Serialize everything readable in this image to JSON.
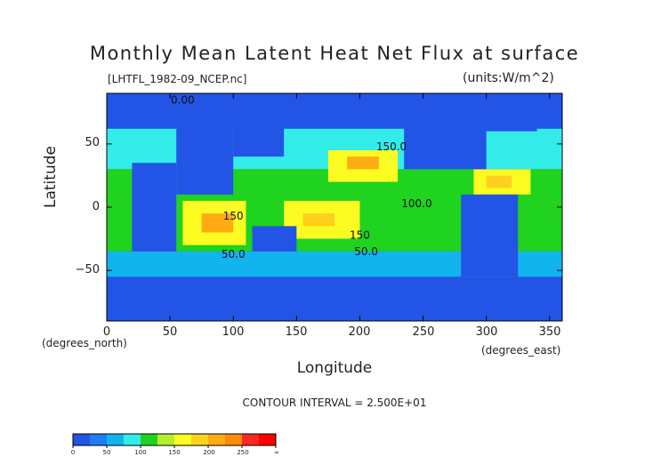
{
  "chart_data": {
    "type": "heatmap",
    "title": "Monthly Mean Latent Heat Net Flux at surface",
    "subtitle": "[LHTFL_1982-09_NCEP.nc]",
    "units": "(units:W/m^2)",
    "xlabel": "Longitude",
    "ylabel": "Latitude",
    "x_unit_note": "(degrees_east)",
    "y_unit_note": "(degrees_north)",
    "xlim": [
      0,
      360
    ],
    "ylim": [
      -90,
      90
    ],
    "x_ticks": [
      "0",
      "50",
      "100",
      "150",
      "200",
      "250",
      "300",
      "350"
    ],
    "x_tick_values": [
      0,
      50,
      100,
      150,
      200,
      250,
      300,
      350
    ],
    "y_ticks": [
      "50",
      "0",
      "−50"
    ],
    "y_tick_values": [
      50,
      0,
      -50
    ],
    "contour_interval_text": "CONTOUR INTERVAL = 2.500E+01",
    "contour_labels": [
      {
        "text": "0.00",
        "lon": 60,
        "lat": 82
      },
      {
        "text": "150.0",
        "lon": 225,
        "lat": 45
      },
      {
        "text": "100.0",
        "lon": 245,
        "lat": 0
      },
      {
        "text": "150",
        "lon": 100,
        "lat": -10
      },
      {
        "text": "150",
        "lon": 200,
        "lat": -25
      },
      {
        "text": "50.0",
        "lon": 100,
        "lat": -40
      },
      {
        "text": "50.0",
        "lon": 205,
        "lat": -38
      }
    ],
    "colorbar": {
      "levels": [
        0,
        25,
        50,
        75,
        100,
        125,
        150,
        175,
        200,
        225,
        250,
        275
      ],
      "colors": [
        "#2255e6",
        "#1f7cf2",
        "#12b4ee",
        "#33ecea",
        "#1fd31f",
        "#b3ef2a",
        "#fcfc22",
        "#ffd11c",
        "#ffab14",
        "#ff8a0c",
        "#ff2626",
        "#ff0000"
      ],
      "tick_labels": [
        "0",
        "50",
        "100",
        "150",
        "200",
        "250",
        "∞"
      ],
      "tick_values": [
        0,
        50,
        100,
        150,
        200,
        250,
        300
      ]
    },
    "regions": [
      {
        "lon": [
          0,
          360
        ],
        "lat": [
          -90,
          90
        ],
        "value": 20
      },
      {
        "lon": [
          0,
          360
        ],
        "lat": [
          30,
          62
        ],
        "value": 75
      },
      {
        "lon": [
          0,
          360
        ],
        "lat": [
          -35,
          30
        ],
        "value": 120
      },
      {
        "lon": [
          0,
          360
        ],
        "lat": [
          -55,
          -35
        ],
        "value": 70
      },
      {
        "lon": [
          60,
          110
        ],
        "lat": [
          -30,
          5
        ],
        "value": 165
      },
      {
        "lon": [
          75,
          100
        ],
        "lat": [
          -20,
          -5
        ],
        "value": 210
      },
      {
        "lon": [
          140,
          200
        ],
        "lat": [
          -25,
          5
        ],
        "value": 160
      },
      {
        "lon": [
          155,
          180
        ],
        "lat": [
          -15,
          -5
        ],
        "value": 195
      },
      {
        "lon": [
          175,
          230
        ],
        "lat": [
          20,
          45
        ],
        "value": 165
      },
      {
        "lon": [
          190,
          215
        ],
        "lat": [
          30,
          40
        ],
        "value": 200
      },
      {
        "lon": [
          290,
          335
        ],
        "lat": [
          10,
          30
        ],
        "value": 160
      },
      {
        "lon": [
          300,
          320
        ],
        "lat": [
          15,
          25
        ],
        "value": 180
      },
      {
        "lon": [
          20,
          55
        ],
        "lat": [
          -35,
          35
        ],
        "value": 20
      },
      {
        "lon": [
          55,
          100
        ],
        "lat": [
          10,
          70
        ],
        "value": 20
      },
      {
        "lon": [
          100,
          140
        ],
        "lat": [
          40,
          75
        ],
        "value": 20
      },
      {
        "lon": [
          115,
          150
        ],
        "lat": [
          -35,
          -15
        ],
        "value": 20
      },
      {
        "lon": [
          235,
          300
        ],
        "lat": [
          30,
          75
        ],
        "value": 20
      },
      {
        "lon": [
          280,
          325
        ],
        "lat": [
          -55,
          10
        ],
        "value": 20
      },
      {
        "lon": [
          0,
          360
        ],
        "lat": [
          -90,
          -62
        ],
        "value": 10
      },
      {
        "lon": [
          300,
          340
        ],
        "lat": [
          60,
          85
        ],
        "value": 10
      }
    ]
  }
}
